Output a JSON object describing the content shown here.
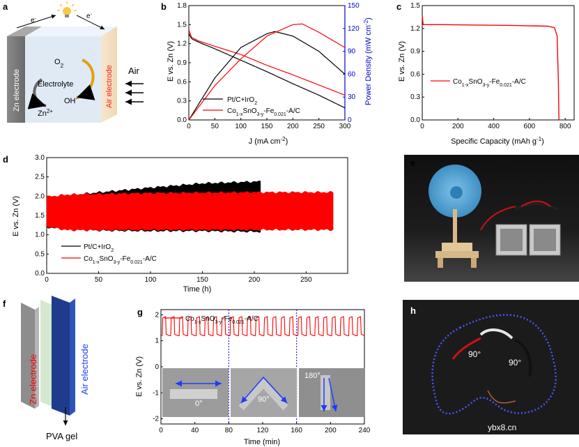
{
  "colors": {
    "red": "#ff0000",
    "black": "#000000",
    "blue": "#0000cc",
    "panel_bg": "#1a1a1a"
  },
  "panels": {
    "a": {
      "label": "a",
      "zn": "Zn electrode",
      "air": "Air electrode",
      "air_txt": "Air",
      "o2": "O2",
      "o2_main": "O",
      "o2_sub": "2",
      "electrolyte": "Electrolyte",
      "oh": "OH-",
      "oh_main": "OH",
      "oh_sup": "-",
      "zn2": "Zn2+",
      "zn2_main": "Zn",
      "zn2_sup": "2+",
      "e1": "e-",
      "e1_main": "e",
      "e1_sup": "-",
      "e2": "e-",
      "e2_main": "e",
      "e2_sup": "-",
      "bulb_icon": "lightbulb-icon"
    },
    "b": {
      "label": "b",
      "xlabel": "J (mA cm-2)",
      "xlabel_main": "J (mA cm",
      "xlabel_sup": "-2",
      "xlabel_end": ")",
      "ylabel": "E vs. Zn (V)",
      "y2label": "Power Density (mW cm-2)",
      "y2label_main": "Power Density (mW cm",
      "y2label_sup": "-2",
      "y2label_end": ")",
      "legend1": "Pt/C+IrO2",
      "legend1_main": "Pt/C+IrO",
      "legend1_sub": "2",
      "legend2": "Co1-xSnO3-y-Fe0.021-A/C",
      "legend2_a": "Co",
      "legend2_b": "1-x",
      "legend2_c": "SnO",
      "legend2_d": "3-y",
      "legend2_e": "-Fe",
      "legend2_f": "0.021",
      "legend2_g": "-A/C"
    },
    "c": {
      "label": "c",
      "xlabel": "Specific Capacity (mAh g-1)",
      "xlabel_main": "Specific Capacity (mAh g",
      "xlabel_sup": "-1",
      "xlabel_end": ")",
      "ylabel": "E vs. Zn (V)",
      "legend": "Co1-xSnO3-y-Fe0.021-A/C",
      "leg_a": "Co",
      "leg_b": "1-x",
      "leg_c": "SnO",
      "leg_d": "3-y",
      "leg_e": "-Fe",
      "leg_f": "0.021",
      "leg_g": "-A/C"
    },
    "d": {
      "label": "d",
      "xlabel": "Time (h)",
      "ylabel": "E vs. Zn (V)",
      "legend1": "Pt/C+IrO2",
      "legend1_main": "Pt/C+IrO",
      "legend1_sub": "2",
      "legend2": "Co1-xSnO3-y-Fe0.021-A/C",
      "legend2_a": "Co",
      "legend2_b": "1-x",
      "legend2_c": "SnO",
      "legend2_d": "3-y",
      "legend2_e": "-Fe",
      "legend2_f": "0.021",
      "legend2_g": "-A/C"
    },
    "e": {
      "label": "e",
      "photo": "fan-powered-by-zinc-air-batteries-photo"
    },
    "f": {
      "label": "f",
      "zn": "Zn electrode",
      "air": "Air electrode",
      "gel": "PVA gel"
    },
    "g": {
      "label": "g",
      "xlabel": "Time (min)",
      "ylabel": "E vs. Zn (V)",
      "legend": "Co1-xSnO3-y-Fe0.021-A/C",
      "leg_a": "Co",
      "leg_b": "1-x",
      "leg_c": "SnO",
      "leg_d": "3-y",
      "leg_e": "-Fe",
      "leg_f": "0.021",
      "leg_g": "-A/C",
      "angle0": "0°",
      "angle90": "90°",
      "angle180": "180°"
    },
    "h": {
      "label": "h",
      "angle_a": "90°",
      "angle_b": "90°",
      "watermark": "ybx8.cn",
      "photo": "led-ring-flexible-battery-photo"
    }
  },
  "chart_data": [
    {
      "panel": "b",
      "type": "line",
      "title": "",
      "xlabel": "J (mA cm-2)",
      "ylabel": "E vs. Zn (V)",
      "y2label": "Power Density (mW cm-2)",
      "xlim": [
        0,
        300
      ],
      "ylim": [
        0,
        1.8
      ],
      "y2lim": [
        0,
        150
      ],
      "xticks": [
        0,
        50,
        100,
        150,
        200,
        250,
        300
      ],
      "yticks": [
        0.0,
        0.3,
        0.6,
        0.9,
        1.2,
        1.5,
        1.8
      ],
      "y2ticks": [
        0,
        30,
        60,
        90,
        120,
        150
      ],
      "series": [
        {
          "name": "Pt/C+IrO2 polarization",
          "axis": "left",
          "color": "#000000",
          "x": [
            0,
            5,
            20,
            50,
            100,
            150,
            200,
            250,
            300
          ],
          "y": [
            1.36,
            1.28,
            1.22,
            1.12,
            0.94,
            0.76,
            0.57,
            0.39,
            0.19
          ]
        },
        {
          "name": "Co1-xSnO3-y-Fe0.021-A/C polarization",
          "axis": "left",
          "color": "#ff0000",
          "x": [
            0,
            5,
            20,
            50,
            100,
            150,
            200,
            250,
            300
          ],
          "y": [
            1.42,
            1.3,
            1.24,
            1.16,
            1.03,
            0.86,
            0.71,
            0.55,
            0.39
          ]
        },
        {
          "name": "Pt/C+IrO2 power density",
          "axis": "right",
          "color": "#000000",
          "x": [
            0,
            50,
            100,
            150,
            165,
            200,
            250,
            300
          ],
          "y": [
            0,
            55,
            95,
            113,
            116,
            110,
            90,
            60
          ]
        },
        {
          "name": "Co1-xSnO3-y-Fe0.021-A/C power density",
          "axis": "right",
          "color": "#ff0000",
          "x": [
            0,
            50,
            100,
            150,
            200,
            218,
            250,
            300
          ],
          "y": [
            0,
            45,
            80,
            110,
            125,
            126,
            115,
            95
          ]
        }
      ]
    },
    {
      "panel": "c",
      "type": "line",
      "xlabel": "Specific Capacity (mAh g-1)",
      "ylabel": "E vs. Zn (V)",
      "xlim": [
        0,
        850
      ],
      "ylim": [
        0,
        1.5
      ],
      "xticks": [
        0,
        200,
        400,
        600,
        800
      ],
      "yticks": [
        0.0,
        0.3,
        0.6,
        0.9,
        1.2,
        1.5
      ],
      "series": [
        {
          "name": "Co1-xSnO3-y-Fe0.021-A/C",
          "color": "#ff0000",
          "x": [
            0,
            5,
            100,
            300,
            500,
            700,
            740,
            755,
            762,
            765
          ],
          "y": [
            1.37,
            1.25,
            1.25,
            1.245,
            1.24,
            1.23,
            1.21,
            1.1,
            0.5,
            0.0
          ]
        }
      ]
    },
    {
      "panel": "d",
      "type": "area",
      "xlabel": "Time (h)",
      "ylabel": "E vs. Zn (V)",
      "xlim": [
        0,
        290
      ],
      "ylim": [
        0,
        3.0
      ],
      "xticks": [
        0,
        50,
        100,
        150,
        200,
        250
      ],
      "yticks": [
        0.0,
        0.5,
        1.0,
        1.5,
        2.0,
        2.5,
        3.0
      ],
      "series": [
        {
          "name": "Pt/C+IrO2",
          "color": "#000000",
          "x": [
            0,
            20,
            60,
            100,
            150,
            206
          ],
          "upper": [
            1.98,
            2.02,
            2.12,
            2.22,
            2.33,
            2.38
          ],
          "lower": [
            1.2,
            1.13,
            1.11,
            1.1,
            1.1,
            1.08
          ]
        },
        {
          "name": "Co1-xSnO3-y-Fe0.021-A/C",
          "color": "#ff0000",
          "x": [
            0,
            20,
            100,
            200,
            276
          ],
          "upper": [
            1.98,
            2.04,
            2.08,
            2.1,
            2.1
          ],
          "lower": [
            1.22,
            1.12,
            1.13,
            1.13,
            1.13
          ]
        }
      ]
    },
    {
      "panel": "g",
      "type": "line",
      "xlabel": "Time (min)",
      "ylabel": "E vs. Zn (V)",
      "xlim": [
        0,
        240
      ],
      "ylim": [
        -2.2,
        2.2
      ],
      "xticks": [
        0,
        40,
        80,
        120,
        160,
        200,
        240
      ],
      "yticks": [
        -2,
        -1,
        0,
        1,
        2
      ],
      "markers": [
        80,
        160
      ],
      "series": [
        {
          "name": "Co1-xSnO3-y-Fe0.021-A/C",
          "color": "#ff0000",
          "cycle_minutes": 10,
          "charge_V": 1.93,
          "discharge_V": 1.2,
          "x_range": [
            0,
            240
          ]
        }
      ]
    }
  ]
}
